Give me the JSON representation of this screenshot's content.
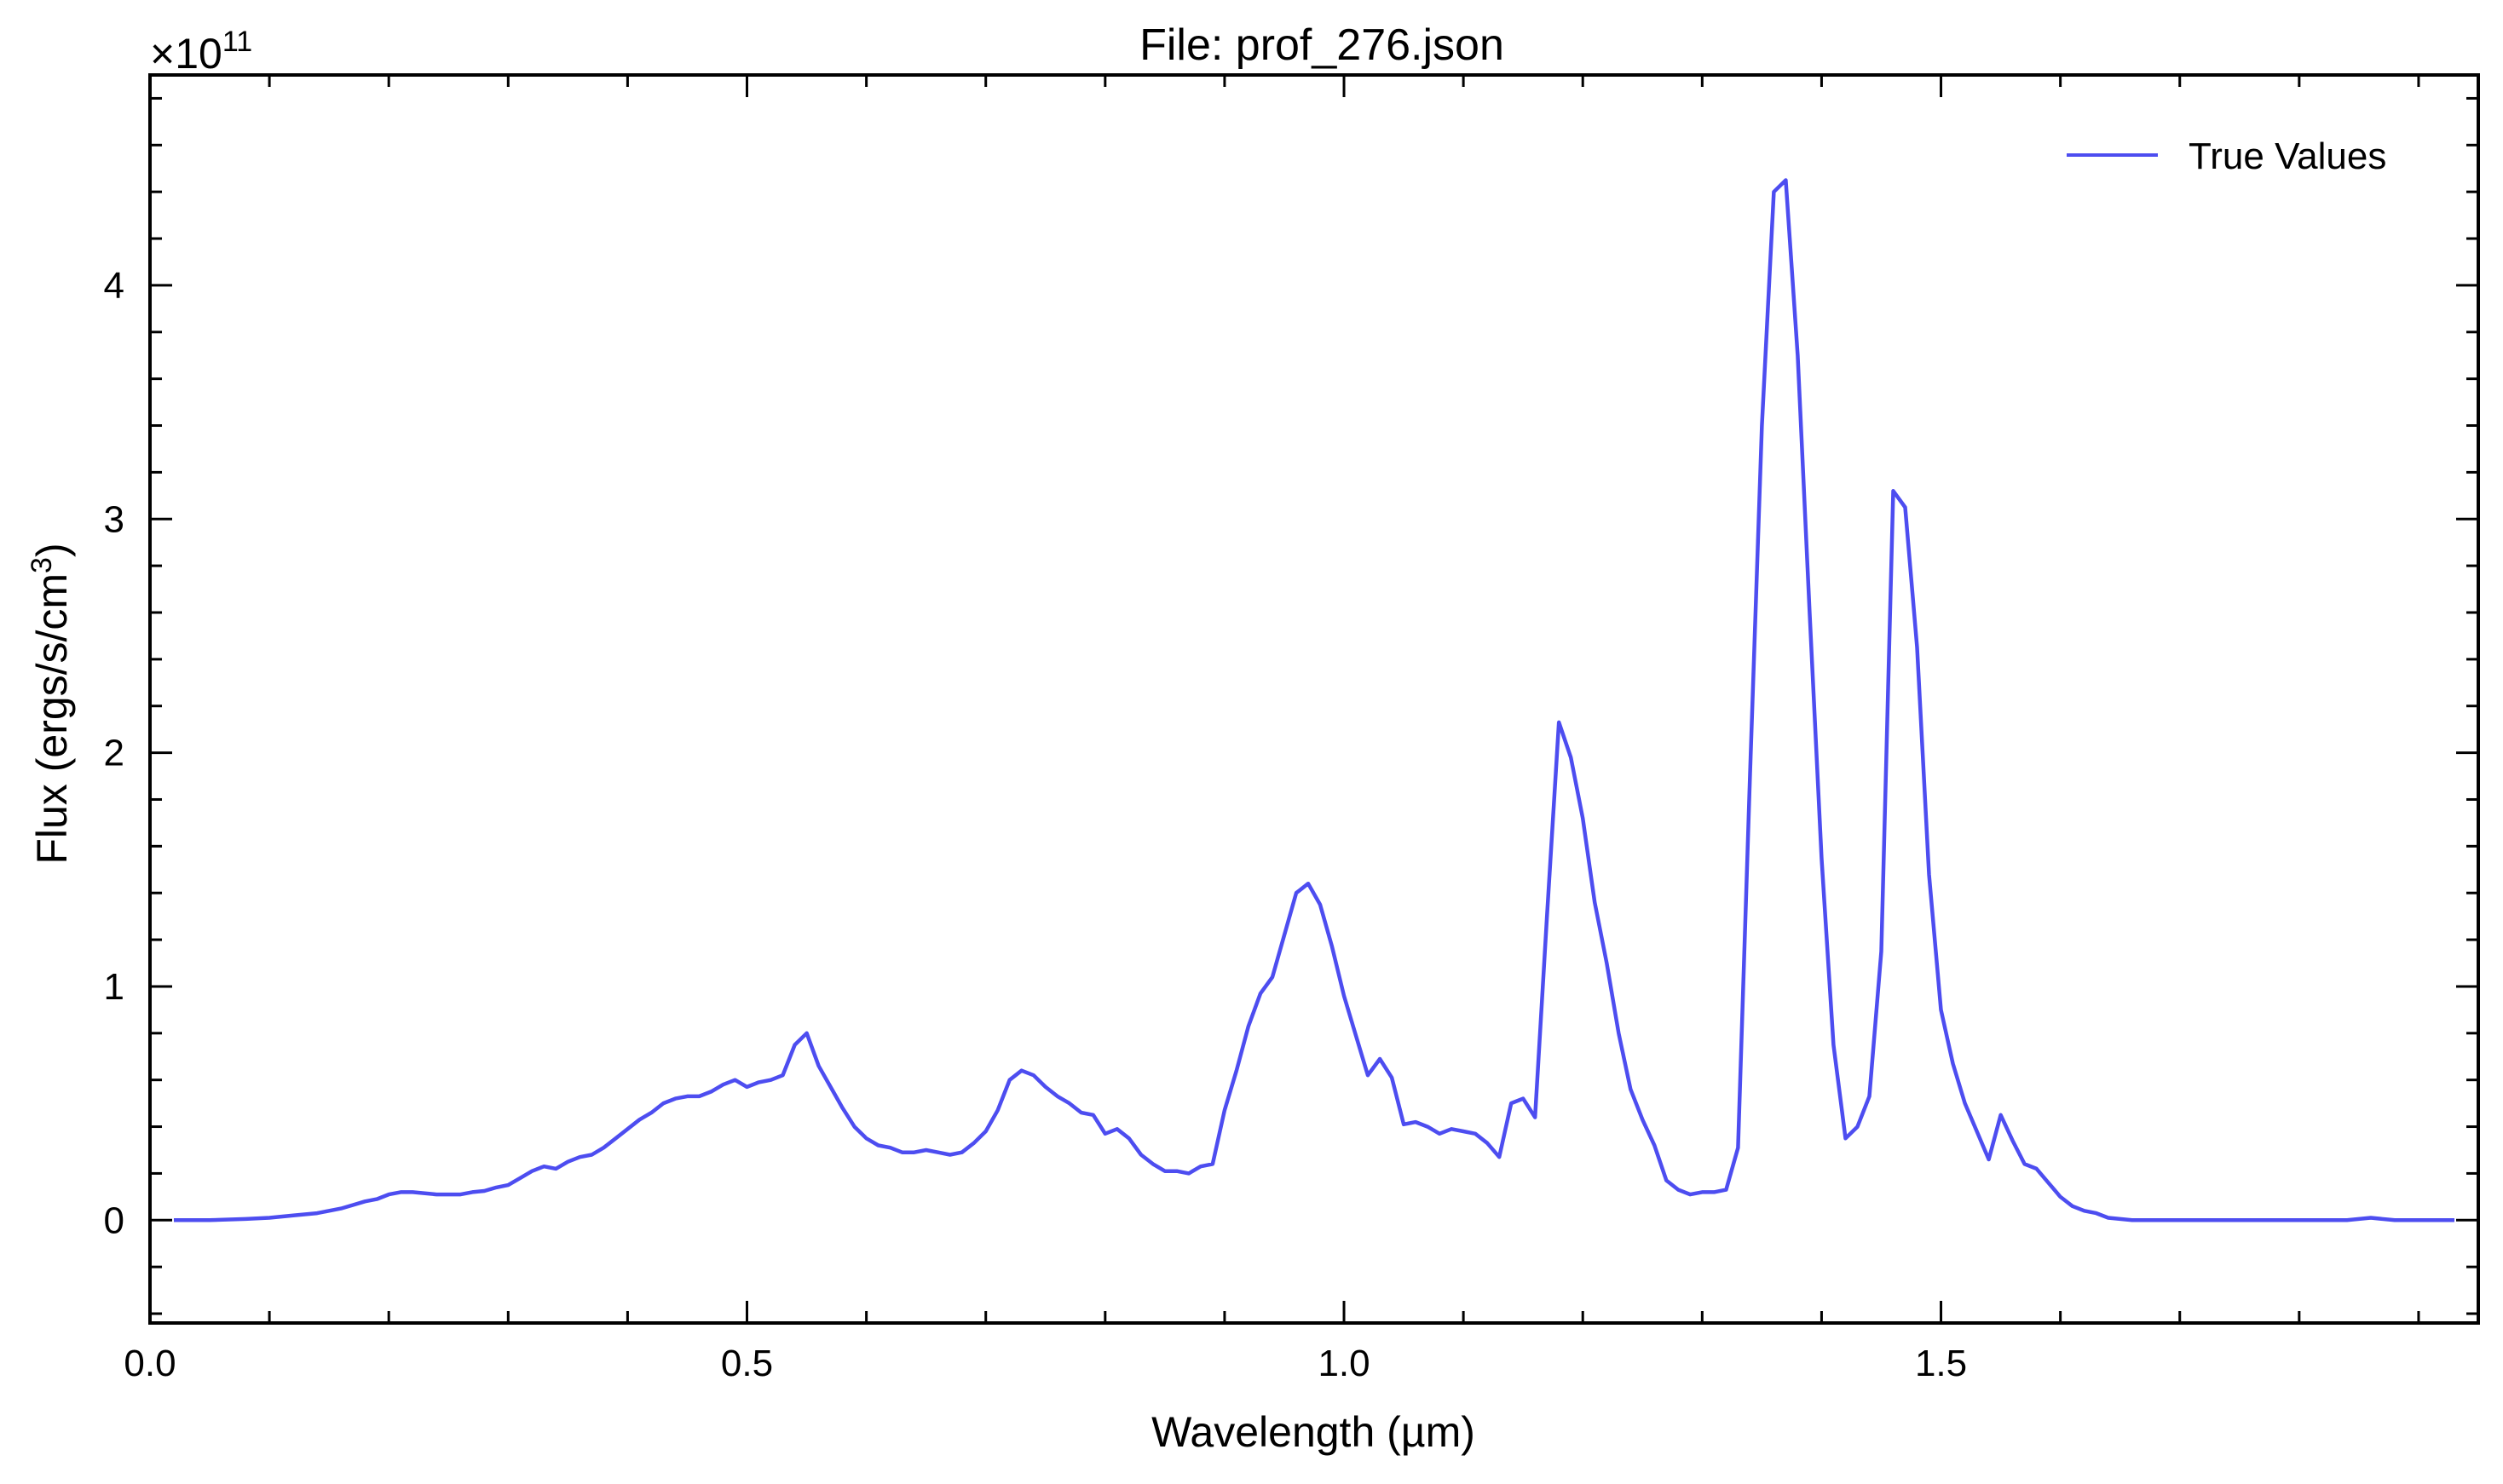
{
  "chart_data": {
    "type": "line",
    "title": "File: prof_276.json",
    "xlabel": "Wavelength (µm)",
    "ylabel_main": "Flux (ergs/s/cm",
    "ylabel_sup": "3",
    "ylabel_close": ")",
    "y_multiplier": {
      "base": "×10",
      "exponent": "11"
    },
    "xlim": [
      0.0,
      1.95
    ],
    "ylim": [
      -0.44,
      4.9
    ],
    "xticks": [
      {
        "value": 0.0,
        "label": "0.0"
      },
      {
        "value": 0.5,
        "label": "0.5"
      },
      {
        "value": 1.0,
        "label": "1.0"
      },
      {
        "value": 1.5,
        "label": "1.5"
      }
    ],
    "yticks": [
      {
        "value": 0,
        "label": "0"
      },
      {
        "value": 1,
        "label": "1"
      },
      {
        "value": 2,
        "label": "2"
      },
      {
        "value": 3,
        "label": "3"
      },
      {
        "value": 4,
        "label": "4"
      }
    ],
    "grid": false,
    "legend_placement": "top-right",
    "series": [
      {
        "name": "True Values",
        "color": "#4d4df0",
        "points": [
          [
            0.02,
            0.0
          ],
          [
            0.05,
            0.0
          ],
          [
            0.08,
            0.005
          ],
          [
            0.1,
            0.01
          ],
          [
            0.12,
            0.02
          ],
          [
            0.14,
            0.03
          ],
          [
            0.15,
            0.04
          ],
          [
            0.16,
            0.05
          ],
          [
            0.17,
            0.065
          ],
          [
            0.18,
            0.08
          ],
          [
            0.19,
            0.09
          ],
          [
            0.2,
            0.11
          ],
          [
            0.21,
            0.12
          ],
          [
            0.22,
            0.12
          ],
          [
            0.24,
            0.11
          ],
          [
            0.26,
            0.11
          ],
          [
            0.27,
            0.12
          ],
          [
            0.28,
            0.125
          ],
          [
            0.29,
            0.14
          ],
          [
            0.3,
            0.15
          ],
          [
            0.31,
            0.18
          ],
          [
            0.32,
            0.21
          ],
          [
            0.33,
            0.23
          ],
          [
            0.34,
            0.22
          ],
          [
            0.35,
            0.25
          ],
          [
            0.36,
            0.27
          ],
          [
            0.37,
            0.28
          ],
          [
            0.38,
            0.31
          ],
          [
            0.39,
            0.35
          ],
          [
            0.4,
            0.39
          ],
          [
            0.41,
            0.43
          ],
          [
            0.42,
            0.46
          ],
          [
            0.43,
            0.5
          ],
          [
            0.44,
            0.52
          ],
          [
            0.45,
            0.53
          ],
          [
            0.46,
            0.53
          ],
          [
            0.47,
            0.55
          ],
          [
            0.48,
            0.58
          ],
          [
            0.49,
            0.6
          ],
          [
            0.5,
            0.57
          ],
          [
            0.51,
            0.59
          ],
          [
            0.52,
            0.6
          ],
          [
            0.53,
            0.62
          ],
          [
            0.54,
            0.75
          ],
          [
            0.55,
            0.8
          ],
          [
            0.56,
            0.66
          ],
          [
            0.57,
            0.57
          ],
          [
            0.58,
            0.48
          ],
          [
            0.59,
            0.4
          ],
          [
            0.6,
            0.35
          ],
          [
            0.61,
            0.32
          ],
          [
            0.62,
            0.31
          ],
          [
            0.63,
            0.29
          ],
          [
            0.64,
            0.29
          ],
          [
            0.65,
            0.3
          ],
          [
            0.66,
            0.29
          ],
          [
            0.67,
            0.28
          ],
          [
            0.68,
            0.29
          ],
          [
            0.69,
            0.33
          ],
          [
            0.7,
            0.38
          ],
          [
            0.71,
            0.47
          ],
          [
            0.72,
            0.6
          ],
          [
            0.73,
            0.64
          ],
          [
            0.74,
            0.62
          ],
          [
            0.75,
            0.57
          ],
          [
            0.76,
            0.53
          ],
          [
            0.77,
            0.5
          ],
          [
            0.78,
            0.46
          ],
          [
            0.79,
            0.45
          ],
          [
            0.8,
            0.37
          ],
          [
            0.81,
            0.39
          ],
          [
            0.82,
            0.35
          ],
          [
            0.83,
            0.28
          ],
          [
            0.84,
            0.24
          ],
          [
            0.85,
            0.21
          ],
          [
            0.86,
            0.21
          ],
          [
            0.87,
            0.2
          ],
          [
            0.88,
            0.23
          ],
          [
            0.89,
            0.24
          ],
          [
            0.9,
            0.47
          ],
          [
            0.91,
            0.64
          ],
          [
            0.92,
            0.83
          ],
          [
            0.93,
            0.97
          ],
          [
            0.94,
            1.04
          ],
          [
            0.95,
            1.22
          ],
          [
            0.96,
            1.4
          ],
          [
            0.97,
            1.44
          ],
          [
            0.98,
            1.35
          ],
          [
            0.99,
            1.17
          ],
          [
            1.0,
            0.96
          ],
          [
            1.01,
            0.79
          ],
          [
            1.02,
            0.62
          ],
          [
            1.03,
            0.69
          ],
          [
            1.04,
            0.61
          ],
          [
            1.05,
            0.41
          ],
          [
            1.06,
            0.42
          ],
          [
            1.07,
            0.4
          ],
          [
            1.08,
            0.37
          ],
          [
            1.09,
            0.39
          ],
          [
            1.1,
            0.38
          ],
          [
            1.11,
            0.37
          ],
          [
            1.12,
            0.33
          ],
          [
            1.13,
            0.27
          ],
          [
            1.14,
            0.5
          ],
          [
            1.15,
            0.52
          ],
          [
            1.16,
            0.44
          ],
          [
            1.17,
            1.3
          ],
          [
            1.18,
            2.13
          ],
          [
            1.19,
            1.98
          ],
          [
            1.2,
            1.72
          ],
          [
            1.21,
            1.36
          ],
          [
            1.22,
            1.1
          ],
          [
            1.23,
            0.8
          ],
          [
            1.24,
            0.56
          ],
          [
            1.25,
            0.43
          ],
          [
            1.26,
            0.32
          ],
          [
            1.27,
            0.17
          ],
          [
            1.28,
            0.13
          ],
          [
            1.29,
            0.11
          ],
          [
            1.3,
            0.12
          ],
          [
            1.31,
            0.12
          ],
          [
            1.32,
            0.13
          ],
          [
            1.33,
            0.31
          ],
          [
            1.34,
            1.9
          ],
          [
            1.35,
            3.4
          ],
          [
            1.36,
            4.4
          ],
          [
            1.37,
            4.45
          ],
          [
            1.38,
            3.7
          ],
          [
            1.39,
            2.6
          ],
          [
            1.4,
            1.55
          ],
          [
            1.41,
            0.75
          ],
          [
            1.42,
            0.35
          ],
          [
            1.43,
            0.4
          ],
          [
            1.44,
            0.53
          ],
          [
            1.45,
            1.15
          ],
          [
            1.46,
            3.12
          ],
          [
            1.47,
            3.05
          ],
          [
            1.48,
            2.45
          ],
          [
            1.49,
            1.48
          ],
          [
            1.5,
            0.9
          ],
          [
            1.51,
            0.67
          ],
          [
            1.52,
            0.5
          ],
          [
            1.53,
            0.38
          ],
          [
            1.54,
            0.26
          ],
          [
            1.55,
            0.45
          ],
          [
            1.56,
            0.34
          ],
          [
            1.57,
            0.24
          ],
          [
            1.58,
            0.22
          ],
          [
            1.59,
            0.16
          ],
          [
            1.6,
            0.1
          ],
          [
            1.61,
            0.06
          ],
          [
            1.62,
            0.04
          ],
          [
            1.63,
            0.03
          ],
          [
            1.64,
            0.01
          ],
          [
            1.66,
            0.0
          ],
          [
            1.7,
            0.0
          ],
          [
            1.75,
            0.0
          ],
          [
            1.8,
            0.0
          ],
          [
            1.84,
            0.0
          ],
          [
            1.86,
            0.01
          ],
          [
            1.88,
            0.0
          ],
          [
            1.9,
            0.0
          ],
          [
            1.93,
            0.0
          ]
        ]
      }
    ]
  }
}
